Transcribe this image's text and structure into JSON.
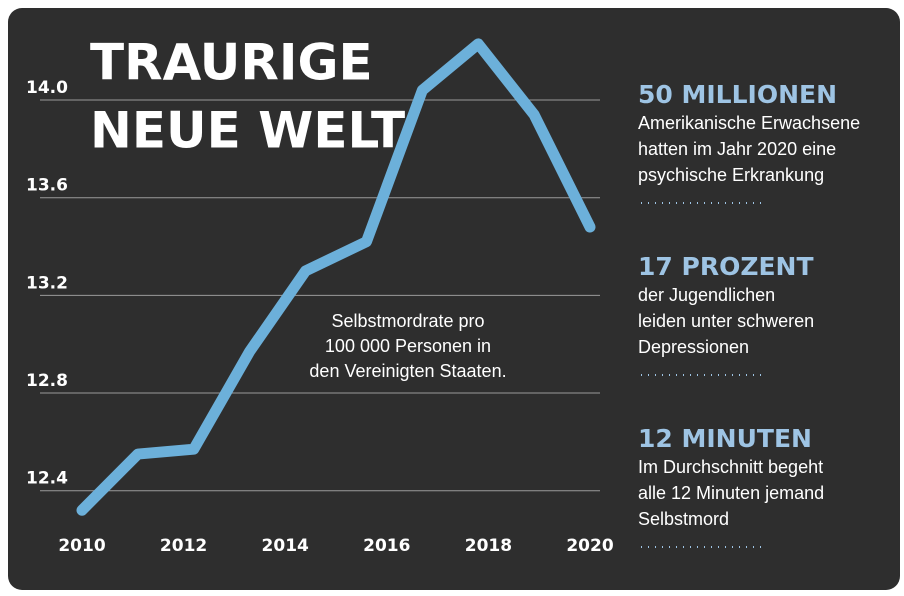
{
  "chart_data": {
    "type": "line",
    "title": [
      "TRAURIGE",
      "NEUE WELT"
    ],
    "annotation": [
      "Selbstmordrate pro",
      "100 000 Personen in",
      "den Vereinigten Staaten."
    ],
    "x": [
      2010,
      2011.1,
      2012.2,
      2013.3,
      2014.4,
      2015.6,
      2016.7,
      2017.8,
      2018.9,
      2020
    ],
    "series": [
      {
        "color": "#6cb0da",
        "values": [
          12.32,
          12.55,
          12.57,
          12.97,
          13.3,
          13.42,
          14.04,
          14.23,
          13.94,
          13.48
        ]
      }
    ],
    "xlim": [
      2010,
      2020
    ],
    "xticks": [
      2010,
      2012,
      2014,
      2016,
      2018,
      2020
    ],
    "ylim": [
      12.28,
      14.25
    ],
    "yticks": [
      {
        "value": 14,
        "label": "14.0"
      },
      13.6,
      13.2,
      12.8,
      12.4
    ],
    "grid": true
  },
  "stats": [
    {
      "heading": "50 MILLIONEN",
      "lines": [
        "Amerikanische Erwachsene",
        "hatten im Jahr 2020 eine",
        "psychische Erkrankung"
      ]
    },
    {
      "heading": "17 PROZENT",
      "lines": [
        "der Jugendlichen",
        "leiden unter schweren",
        "Depressionen"
      ]
    },
    {
      "heading": "12 MINUTEN",
      "lines": [
        "Im Durchschnitt begeht",
        "alle 12 Minuten jemand",
        "Selbstmord"
      ]
    }
  ]
}
